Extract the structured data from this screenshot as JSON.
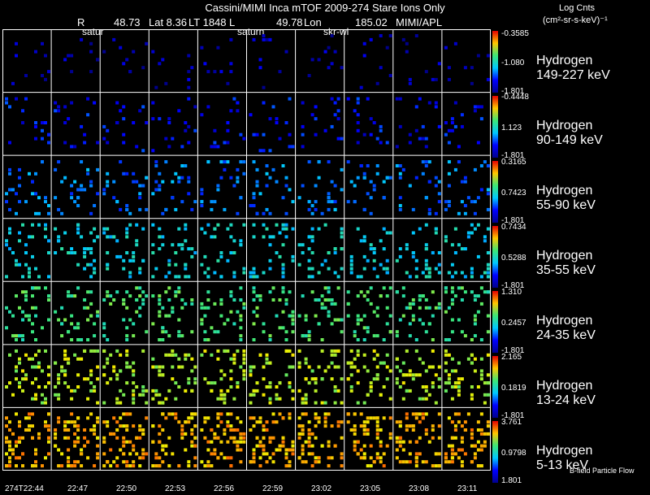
{
  "header": {
    "title": "Cassini/MIMI Inca mTOF  2009-274   Stare   Ions Only",
    "R_label": "R",
    "R_value": "48.73",
    "lat": "Lat 8.36",
    "lt": "LT 1848",
    "l_label": "L",
    "l_value": "49.78",
    "lon_label": "Lon",
    "lon_value": "185.02",
    "lab": "MIMI/APL",
    "overlay_saturn_1": "satur",
    "overlay_saturn_2": "saturn",
    "overlay_skr": "skr-wl"
  },
  "units": {
    "line1": "Log Cnts",
    "line2": "(cm²-sr-s-keV)⁻¹"
  },
  "rows": [
    {
      "species": "Hydrogen",
      "energy": "149-227 keV",
      "cmax": "-0.3585",
      "cmid": "-1.080",
      "cmin": "-1.801",
      "level": 0.05
    },
    {
      "species": "Hydrogen",
      "energy": "90-149 keV",
      "cmax": "-0.4448",
      "cmid": "1.123",
      "cmin": "-1.801",
      "level": 0.15
    },
    {
      "species": "Hydrogen",
      "energy": "55-90 keV",
      "cmax": "0.3165",
      "cmid": "0.7423",
      "cmin": "-1.801",
      "level": 0.27
    },
    {
      "species": "Hydrogen",
      "energy": "35-55 keV",
      "cmax": "0.7434",
      "cmid": "0.5288",
      "cmin": "-1.801",
      "level": 0.4
    },
    {
      "species": "Hydrogen",
      "energy": "24-35 keV",
      "cmax": "1.310",
      "cmid": "0.2457",
      "cmin": "-1.801",
      "level": 0.54
    },
    {
      "species": "Hydrogen",
      "energy": "13-24 keV",
      "cmax": "2.165",
      "cmid": "0.1819",
      "cmin": "-1.801",
      "level": 0.68
    },
    {
      "species": "Hydrogen",
      "energy": "5-13 keV",
      "cmax": "3.761",
      "cmid": "0.9798",
      "cmin": "1.801",
      "level": 0.83
    }
  ],
  "times": [
    "274T22:44",
    "22:47",
    "22:50",
    "22:53",
    "22:56",
    "22:59",
    "23:02",
    "23:05",
    "23:08",
    "23:11"
  ],
  "footer": {
    "bfield": "B-field Particle Flow"
  }
}
